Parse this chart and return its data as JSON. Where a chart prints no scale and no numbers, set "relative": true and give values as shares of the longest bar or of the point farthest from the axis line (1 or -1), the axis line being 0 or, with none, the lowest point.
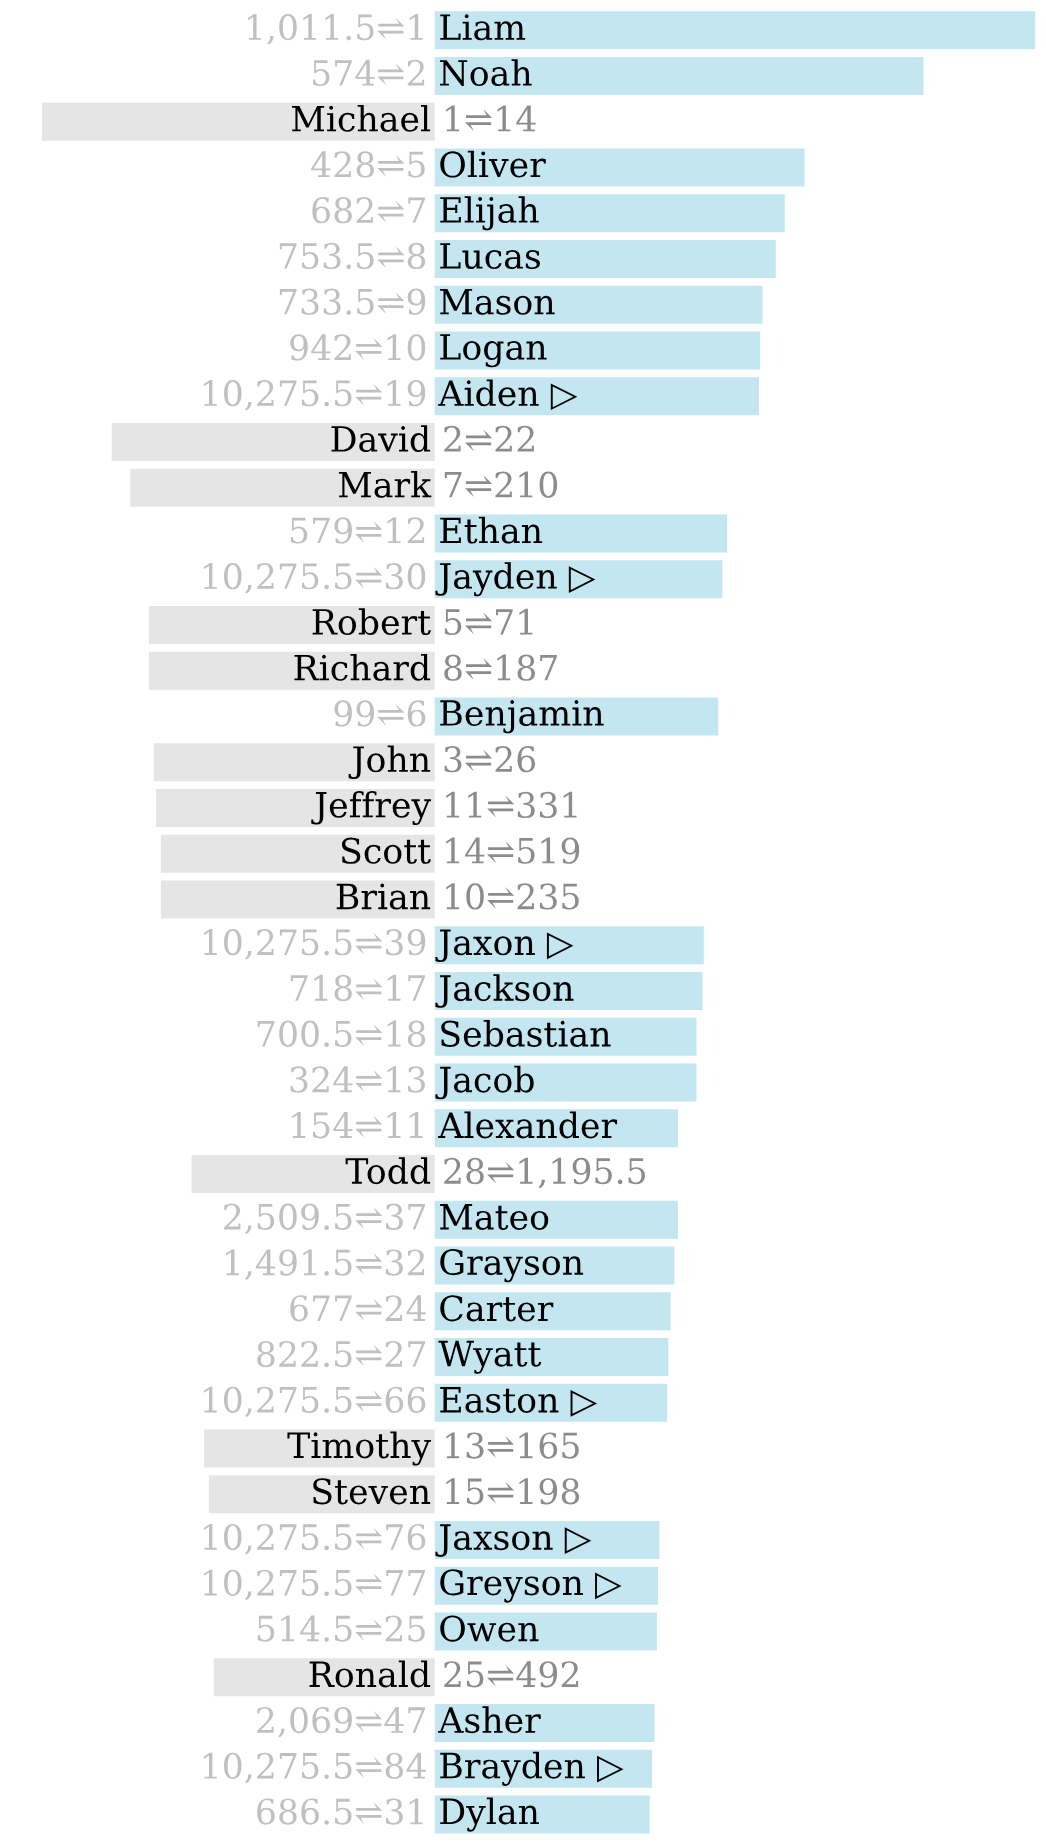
{
  "chart_data": {
    "type": "bar",
    "orientation": "horizontal",
    "relative": true,
    "categories": [
      "Liam",
      "Noah",
      "Michael",
      "Oliver",
      "Elijah",
      "Lucas",
      "Mason",
      "Logan",
      "Aiden ▷",
      "David",
      "Mark",
      "Ethan",
      "Jayden ▷",
      "Robert",
      "Richard",
      "Benjamin",
      "John",
      "Jeffrey",
      "Scott",
      "Brian",
      "Jaxon ▷",
      "Jackson",
      "Sebastian",
      "Jacob",
      "Alexander",
      "Todd",
      "Mateo",
      "Grayson",
      "Carter",
      "Wyatt",
      "Easton ▷",
      "Timothy",
      "Steven",
      "Jaxson ▷",
      "Greyson ▷",
      "Owen",
      "Ronald",
      "Asher",
      "Brayden ▷",
      "Dylan"
    ],
    "values": [
      1,
      0.814,
      -0.654,
      0.616,
      0.583,
      0.568,
      0.546,
      0.542,
      0.54,
      -0.538,
      -0.507,
      0.487,
      0.479,
      -0.476,
      -0.476,
      0.472,
      -0.468,
      -0.464,
      -0.456,
      -0.456,
      0.448,
      0.446,
      0.436,
      0.436,
      0.405,
      -0.405,
      0.405,
      0.399,
      0.393,
      0.389,
      0.387,
      -0.384,
      -0.376,
      0.374,
      0.372,
      0.37,
      -0.368,
      0.366,
      0.362,
      0.358
    ],
    "colors": [
      "#c3e6f1",
      "#c3e6f1",
      "#e5e5e5",
      "#c3e6f1",
      "#c3e6f1",
      "#c3e6f1",
      "#c3e6f1",
      "#c3e6f1",
      "#c3e6f1",
      "#e5e5e5",
      "#e5e5e5",
      "#c3e6f1",
      "#c3e6f1",
      "#e5e5e5",
      "#e5e5e5",
      "#c3e6f1",
      "#e5e5e5",
      "#e5e5e5",
      "#e5e5e5",
      "#e5e5e5",
      "#c3e6f1",
      "#c3e6f1",
      "#c3e6f1",
      "#c3e6f1",
      "#c3e6f1",
      "#e5e5e5",
      "#c3e6f1",
      "#c3e6f1",
      "#c3e6f1",
      "#c3e6f1",
      "#c3e6f1",
      "#e5e5e5",
      "#e5e5e5",
      "#c3e6f1",
      "#c3e6f1",
      "#c3e6f1",
      "#e5e5e5",
      "#c3e6f1",
      "#c3e6f1",
      "#c3e6f1"
    ],
    "annotations": [
      "1,011.5⇌1",
      "574⇌2",
      "1⇌14",
      "428⇌5",
      "682⇌7",
      "753.5⇌8",
      "733.5⇌9",
      "942⇌10",
      "10,275.5⇌19",
      "2⇌22",
      "7⇌210",
      "579⇌12",
      "10,275.5⇌30",
      "5⇌71",
      "8⇌187",
      "99⇌6",
      "3⇌26",
      "11⇌331",
      "14⇌519",
      "10⇌235",
      "10,275.5⇌39",
      "718⇌17",
      "700.5⇌18",
      "324⇌13",
      "154⇌11",
      "28⇌1,195.5",
      "2,509.5⇌37",
      "1,491.5⇌32",
      "677⇌24",
      "822.5⇌27",
      "10,275.5⇌66",
      "13⇌165",
      "15⇌198",
      "10,275.5⇌76",
      "10,275.5⇌77",
      "514.5⇌25",
      "25⇌492",
      "2,069⇌47",
      "10,275.5⇌84",
      "686.5⇌31"
    ],
    "legend": false
  }
}
